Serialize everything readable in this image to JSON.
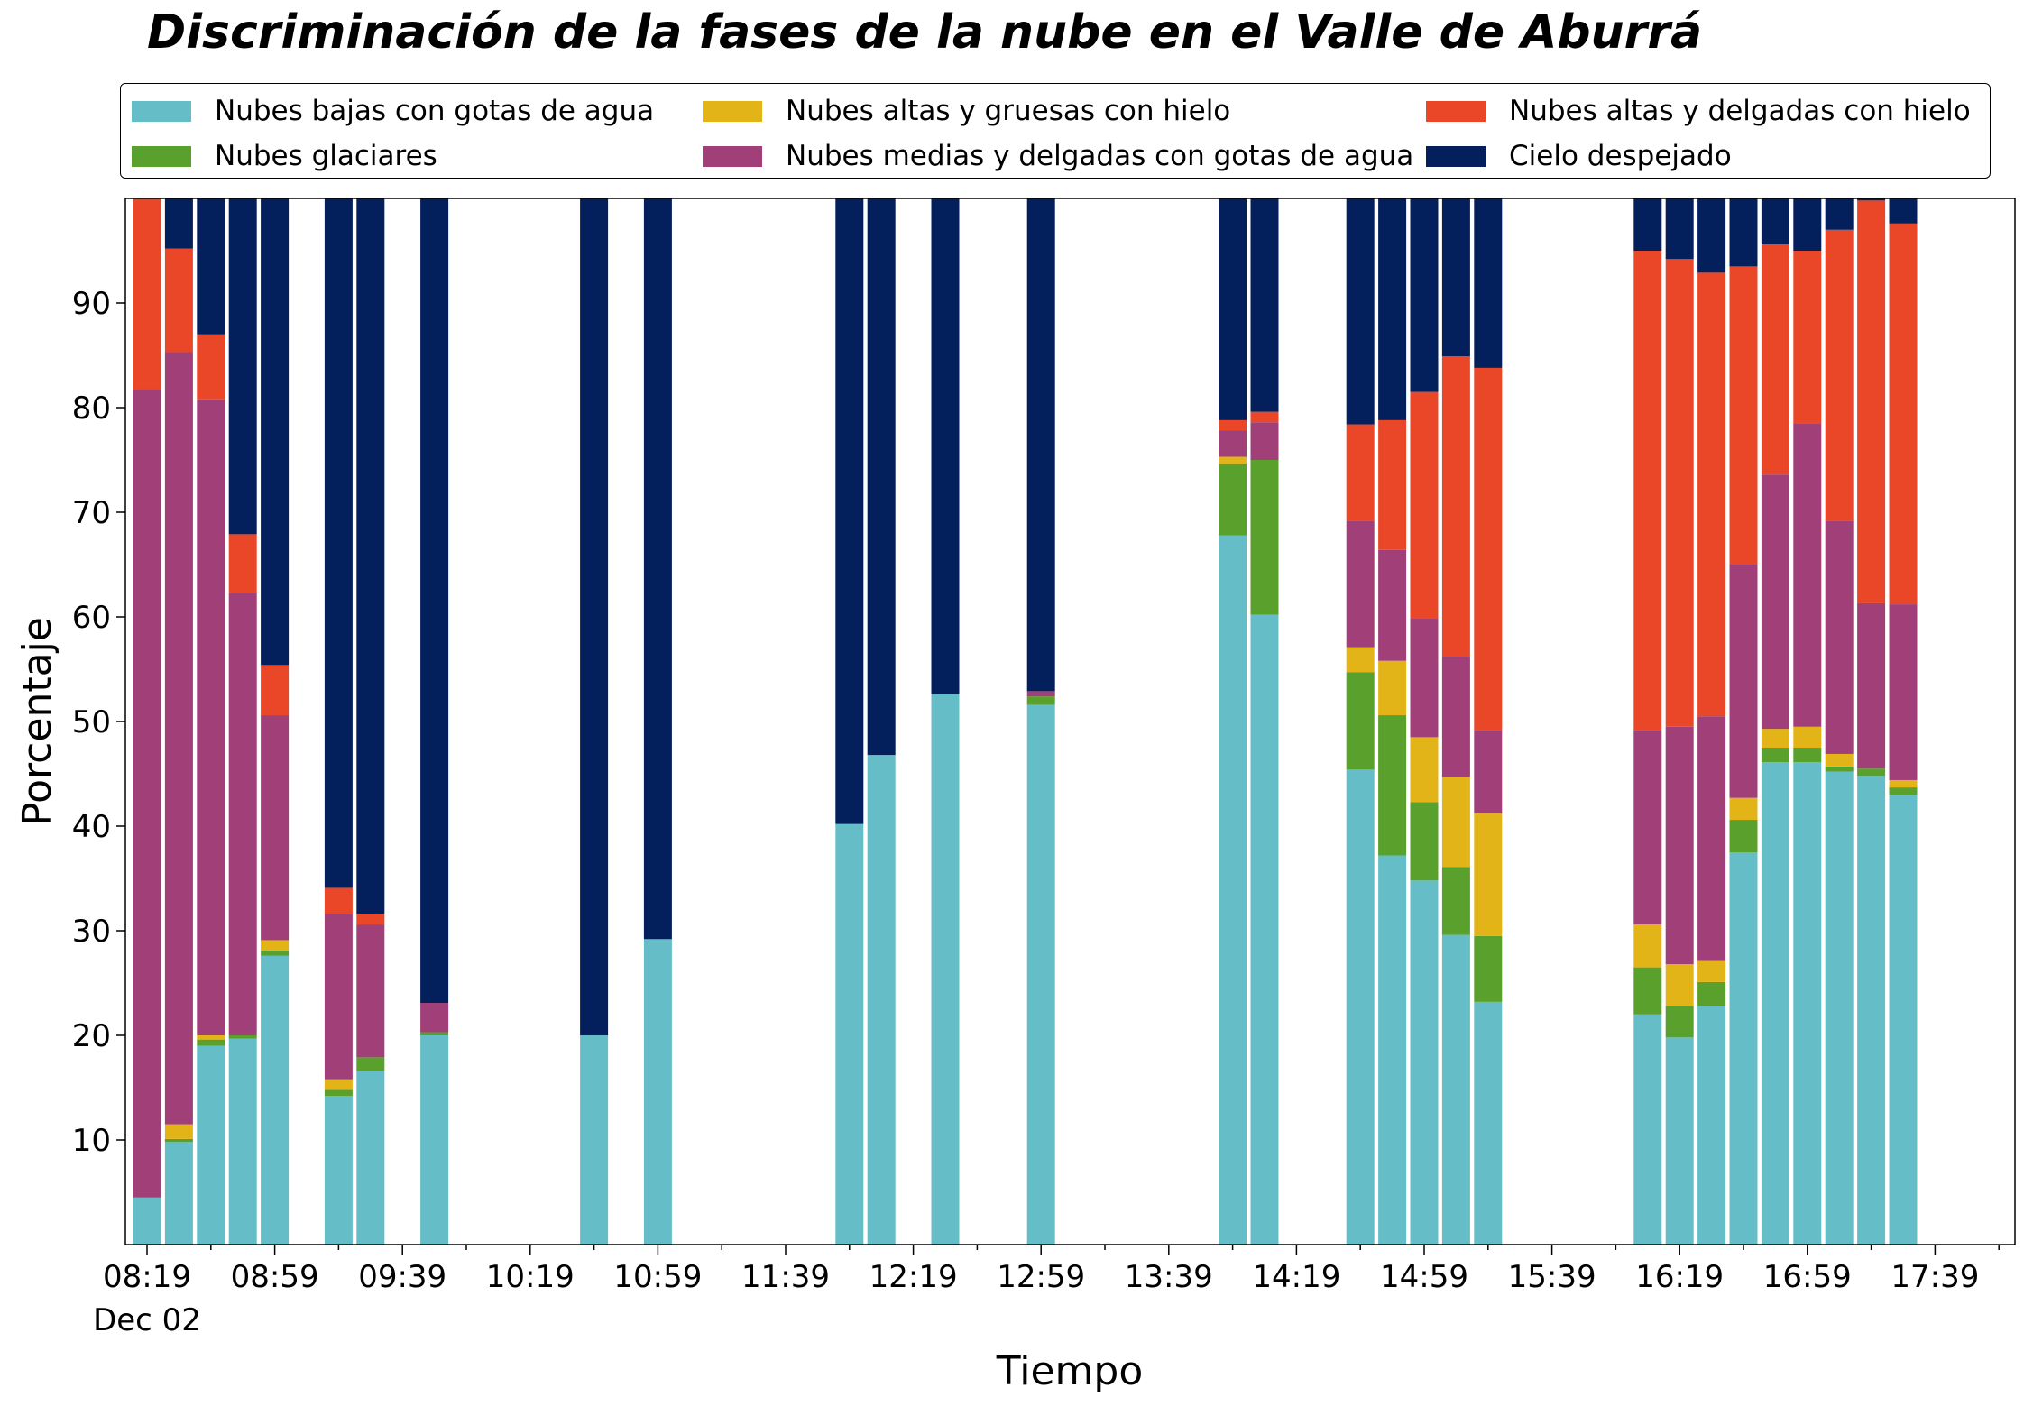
{
  "chart_data": {
    "type": "bar",
    "stacked": true,
    "title": "Discriminación de la fases de la nube en el Valle de Aburrá",
    "xlabel": "Tiempo",
    "ylabel": "Porcentaje",
    "ylim": [
      0,
      100
    ],
    "yticks": [
      10,
      20,
      30,
      40,
      50,
      60,
      70,
      80,
      90
    ],
    "xticks": [
      "08:19",
      "08:59",
      "09:39",
      "10:19",
      "10:59",
      "11:39",
      "12:19",
      "12:59",
      "13:39",
      "14:19",
      "14:59",
      "15:39",
      "16:19",
      "16:59",
      "17:39"
    ],
    "xtick_sublabel": "Dec 02",
    "grid": false,
    "legend_position": "top",
    "x": [
      "08:19",
      "08:29",
      "08:39",
      "08:49",
      "08:59",
      "09:19",
      "09:29",
      "09:49",
      "10:39",
      "10:59",
      "11:59",
      "12:09",
      "12:29",
      "12:59",
      "13:59",
      "14:09",
      "14:39",
      "14:49",
      "14:59",
      "15:09",
      "15:19",
      "16:09",
      "16:19",
      "16:29",
      "16:39",
      "16:49",
      "16:59",
      "17:09",
      "17:19",
      "17:29"
    ],
    "series": [
      {
        "name": "Nubes bajas con gotas de agua",
        "color": "#65bdc8",
        "values": [
          4.5,
          9.8,
          19,
          19.7,
          27.6,
          14.2,
          16.6,
          20,
          20,
          29.2,
          40.2,
          46.8,
          52.6,
          51.6,
          67.8,
          60.2,
          45.4,
          37.2,
          34.8,
          29.6,
          23.2,
          22,
          19.8,
          22.8,
          37.5,
          46.1,
          46.1,
          45.2,
          44.8,
          43
        ]
      },
      {
        "name": "Nubes glaciares",
        "color": "#5aa02c",
        "values": [
          0,
          0.3,
          0.6,
          0.3,
          0.5,
          0.6,
          1.3,
          0.3,
          0,
          0,
          0,
          0,
          0,
          0.8,
          6.8,
          14.8,
          9.3,
          13.4,
          7.5,
          6.5,
          6.3,
          4.5,
          3,
          2.3,
          3.1,
          1.4,
          1.4,
          0.5,
          0.7,
          0.7
        ]
      },
      {
        "name": "Nubes altas y gruesas con hielo",
        "color": "#e3b418",
        "values": [
          0,
          1.4,
          0.4,
          0,
          1,
          1,
          0,
          0,
          0,
          0,
          0,
          0,
          0,
          0,
          0.7,
          0,
          2.4,
          5.2,
          6.2,
          8.6,
          11.7,
          4.1,
          4,
          2,
          2.1,
          1.8,
          2,
          1.2,
          0,
          0.7
        ]
      },
      {
        "name": "Nubes medias y delgadas con gotas de agua",
        "color": "#a03f78",
        "values": [
          77.3,
          73.8,
          60.8,
          42.3,
          21.5,
          15.8,
          12.7,
          2.8,
          0,
          0,
          0,
          0,
          0,
          0.5,
          2.5,
          3.6,
          12.1,
          10.6,
          11.4,
          11.5,
          8,
          18.6,
          22.7,
          23.4,
          22.3,
          24.3,
          29,
          22.3,
          15.8,
          16.8
        ]
      },
      {
        "name": "Nubes altas y delgadas con hielo",
        "color": "#ea4728",
        "values": [
          18.2,
          9.9,
          6.2,
          5.6,
          4.8,
          2.5,
          1,
          0,
          0,
          0,
          0,
          0,
          0,
          0,
          1,
          1,
          9.2,
          12.4,
          21.6,
          28.7,
          34.6,
          45.8,
          44.7,
          42.4,
          28.5,
          22,
          16.5,
          27.8,
          38.5,
          36.4
        ]
      },
      {
        "name": "Cielo despejado",
        "color": "#031f5c",
        "values": [
          0,
          4.8,
          13,
          32.1,
          44.6,
          65.9,
          68.4,
          76.9,
          80,
          70.8,
          59.8,
          53.2,
          47.4,
          47.1,
          21.2,
          20.4,
          21.6,
          21.2,
          18.5,
          15.1,
          16.2,
          5,
          5.8,
          7.1,
          6.5,
          4.4,
          5,
          3,
          0.2,
          2.4
        ]
      }
    ]
  }
}
